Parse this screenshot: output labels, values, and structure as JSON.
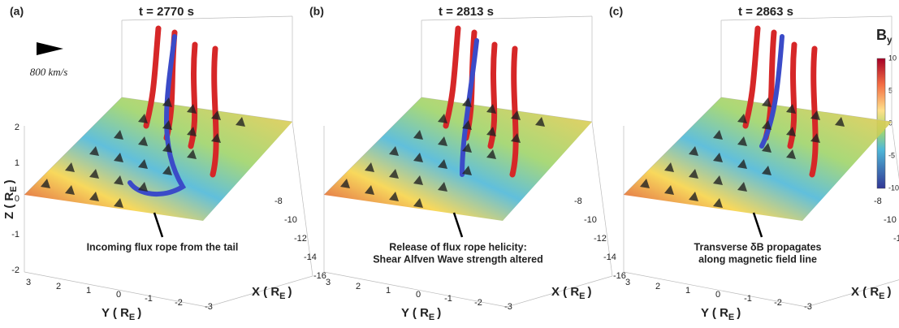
{
  "scale_label": "800 km/s",
  "colorbar": {
    "title": "B",
    "title_sub": "y",
    "ticks": [
      10,
      5,
      0,
      -5,
      -10
    ]
  },
  "panels": [
    {
      "label": "(a)",
      "title": "t = 2770 s",
      "annotation": [
        "Incoming flux rope from the tail"
      ],
      "z_label": {
        "text": "Z ( R",
        "sub": "E",
        "close": ")"
      },
      "z_ticks": [
        2,
        1,
        0,
        -1,
        -2
      ],
      "y_label": {
        "text": "Y ( R",
        "sub": "E",
        "close": ")"
      },
      "y_ticks": [
        3,
        2,
        1,
        0,
        -1,
        -2,
        -3
      ],
      "x_label": {
        "text": "X ( R",
        "sub": "E",
        "close": ")"
      },
      "x_ticks": [
        -8,
        -10,
        -12,
        -14,
        -16
      ]
    },
    {
      "label": "(b)",
      "title": "t = 2813 s",
      "annotation": [
        "Release of flux rope helicity:",
        "Shear Alfven Wave strength altered"
      ],
      "y_label": {
        "text": "Y ( R",
        "sub": "E",
        "close": ")"
      },
      "y_ticks": [
        3,
        2,
        1,
        0,
        -1,
        -2,
        -3
      ],
      "x_label": {
        "text": "X ( R",
        "sub": "E",
        "close": ")"
      },
      "x_ticks": [
        -8,
        -10,
        -12,
        -14,
        -16
      ]
    },
    {
      "label": "(c)",
      "title": "t = 2863 s",
      "annotation": [
        "Transverse δB propagates",
        "along magnetic field line"
      ],
      "y_label": {
        "text": "Y ( R",
        "sub": "E",
        "close": ")"
      },
      "y_ticks": [
        3,
        2,
        1,
        0,
        -1,
        -2,
        -3
      ],
      "x_label": {
        "text": "X ( R",
        "sub": "E",
        "close": ")"
      },
      "x_ticks": [
        -8,
        -10,
        -12,
        -14,
        -16
      ]
    }
  ]
}
